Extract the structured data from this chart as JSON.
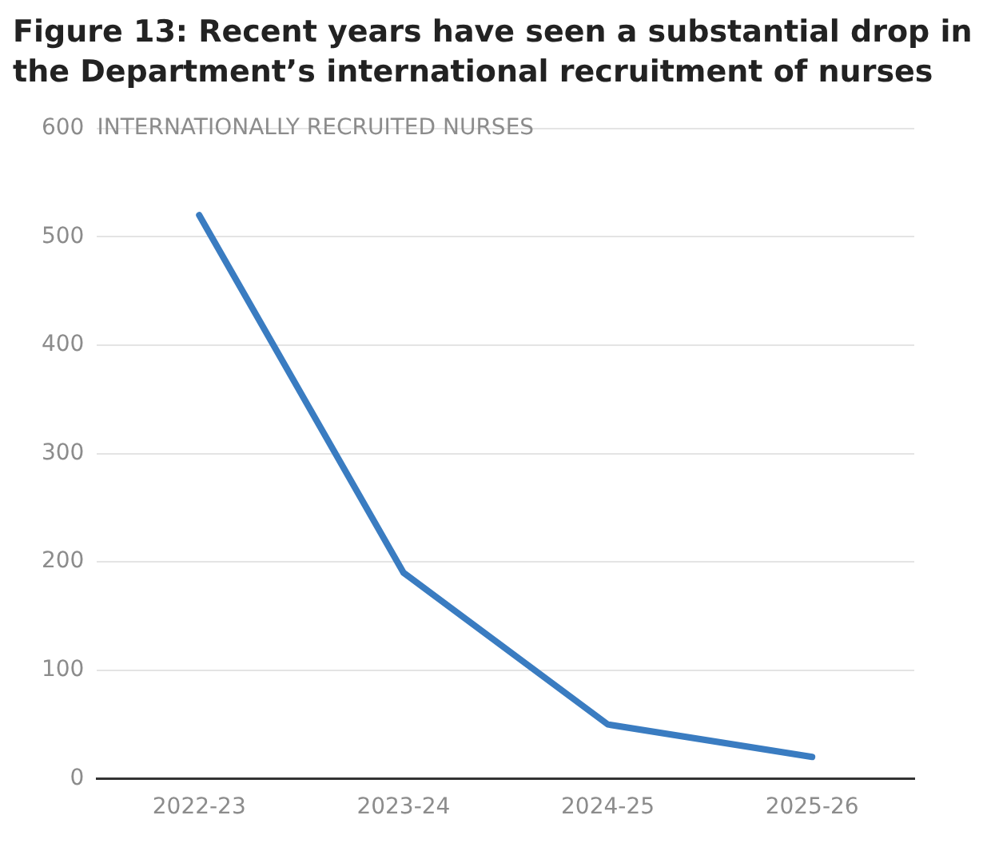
{
  "chart_data": {
    "type": "line",
    "title": "Figure 13: Recent years have seen a substantial drop in the Department’s international recruitment of nurses",
    "ylabel": "INTERNATIONALLY RECRUITED NURSES",
    "categories": [
      "2022-23",
      "2023-24",
      "2024-25",
      "2025-26"
    ],
    "series": [
      {
        "color": "#3a7cc1",
        "values": [
          520,
          190,
          50,
          20
        ]
      }
    ],
    "ylim": [
      0,
      600
    ],
    "yticks": [
      0,
      100,
      200,
      300,
      400,
      500,
      600
    ],
    "grid": "y",
    "legend": false,
    "marker": "none",
    "line_style": "solid"
  }
}
